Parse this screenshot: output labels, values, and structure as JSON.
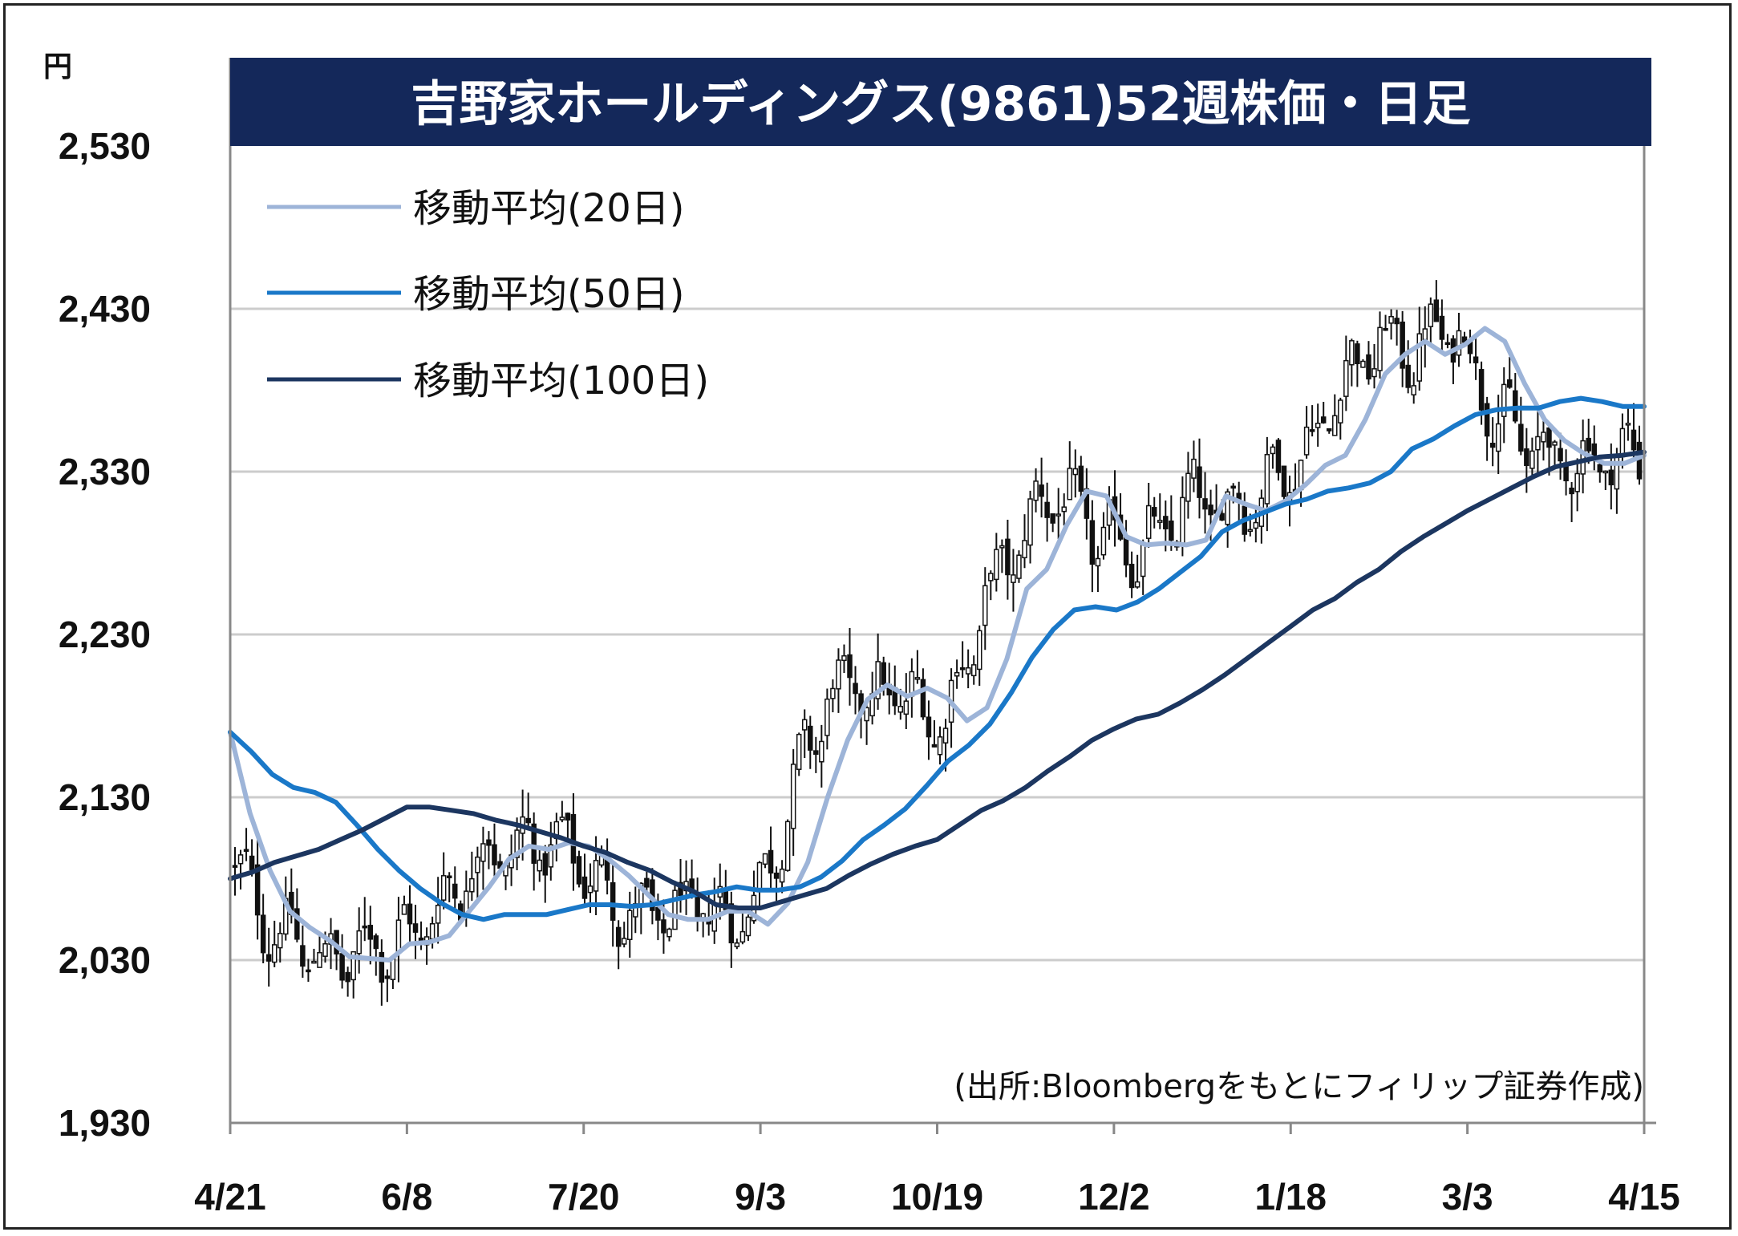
{
  "chart_data": {
    "type": "candlestick",
    "title": "吉野家ホールディングス(9861)52週株価・日足",
    "y_unit": "円",
    "ylim": [
      1930,
      2530
    ],
    "y_ticks": [
      "2,530",
      "2,430",
      "2,330",
      "2,230",
      "2,130",
      "2,030",
      "1,930"
    ],
    "x_ticks": [
      "4/21",
      "6/8",
      "7/20",
      "9/3",
      "10/19",
      "12/2",
      "1/18",
      "3/3",
      "4/15"
    ],
    "grid": true,
    "legend_position": "top-left",
    "source": "(出所:Bloombergをもとにフィリップ証券作成)",
    "colors": {
      "title_bg": "#14285a",
      "ma20": "#9db4d8",
      "ma50": "#1a78c8",
      "ma100": "#1c3660",
      "grid": "#cccccc",
      "candle": "#111111"
    },
    "series": [
      {
        "name": "移動平均(20日)",
        "key": "ma20",
        "values": [
          2170,
          2120,
          2085,
          2060,
          2050,
          2042,
          2032,
          2031,
          2030,
          2040,
          2041,
          2045,
          2060,
          2075,
          2092,
          2100,
          2098,
          2102,
          2100,
          2092,
          2082,
          2070,
          2058,
          2055,
          2055,
          2060,
          2060,
          2052,
          2065,
          2090,
          2130,
          2165,
          2190,
          2199,
          2192,
          2197,
          2191,
          2177,
          2185,
          2215,
          2258,
          2270,
          2297,
          2318,
          2315,
          2290,
          2285,
          2286,
          2285,
          2288,
          2315,
          2310,
          2306,
          2312,
          2322,
          2334,
          2340,
          2362,
          2390,
          2402,
          2410,
          2402,
          2408,
          2418,
          2410,
          2384,
          2362,
          2349,
          2341,
          2335,
          2335,
          2340
        ]
      },
      {
        "name": "移動平均(50日)",
        "key": "ma50",
        "values": [
          2170,
          2158,
          2144,
          2136,
          2133,
          2127,
          2113,
          2098,
          2085,
          2074,
          2065,
          2058,
          2055,
          2058,
          2058,
          2058,
          2061,
          2064,
          2064,
          2063,
          2064,
          2067,
          2070,
          2072,
          2075,
          2073,
          2073,
          2075,
          2081,
          2091,
          2104,
          2113,
          2123,
          2137,
          2152,
          2162,
          2175,
          2194,
          2216,
          2233,
          2245,
          2247,
          2245,
          2250,
          2258,
          2268,
          2278,
          2293,
          2300,
          2305,
          2310,
          2313,
          2318,
          2320,
          2323,
          2330,
          2344,
          2350,
          2358,
          2365,
          2368,
          2369,
          2369,
          2373,
          2375,
          2373,
          2370,
          2370
        ]
      },
      {
        "name": "移動平均(100日)",
        "key": "ma100",
        "values": [
          2080,
          2084,
          2090,
          2094,
          2098,
          2104,
          2110,
          2117,
          2124,
          2124,
          2122,
          2120,
          2116,
          2113,
          2109,
          2105,
          2100,
          2096,
          2090,
          2085,
          2078,
          2072,
          2064,
          2062,
          2062,
          2066,
          2070,
          2074,
          2082,
          2089,
          2095,
          2100,
          2104,
          2113,
          2122,
          2128,
          2136,
          2146,
          2155,
          2165,
          2172,
          2178,
          2181,
          2188,
          2196,
          2205,
          2215,
          2225,
          2235,
          2245,
          2252,
          2262,
          2270,
          2281,
          2290,
          2298,
          2306,
          2313,
          2320,
          2327,
          2333,
          2336,
          2339,
          2340,
          2342
        ]
      }
    ]
  }
}
